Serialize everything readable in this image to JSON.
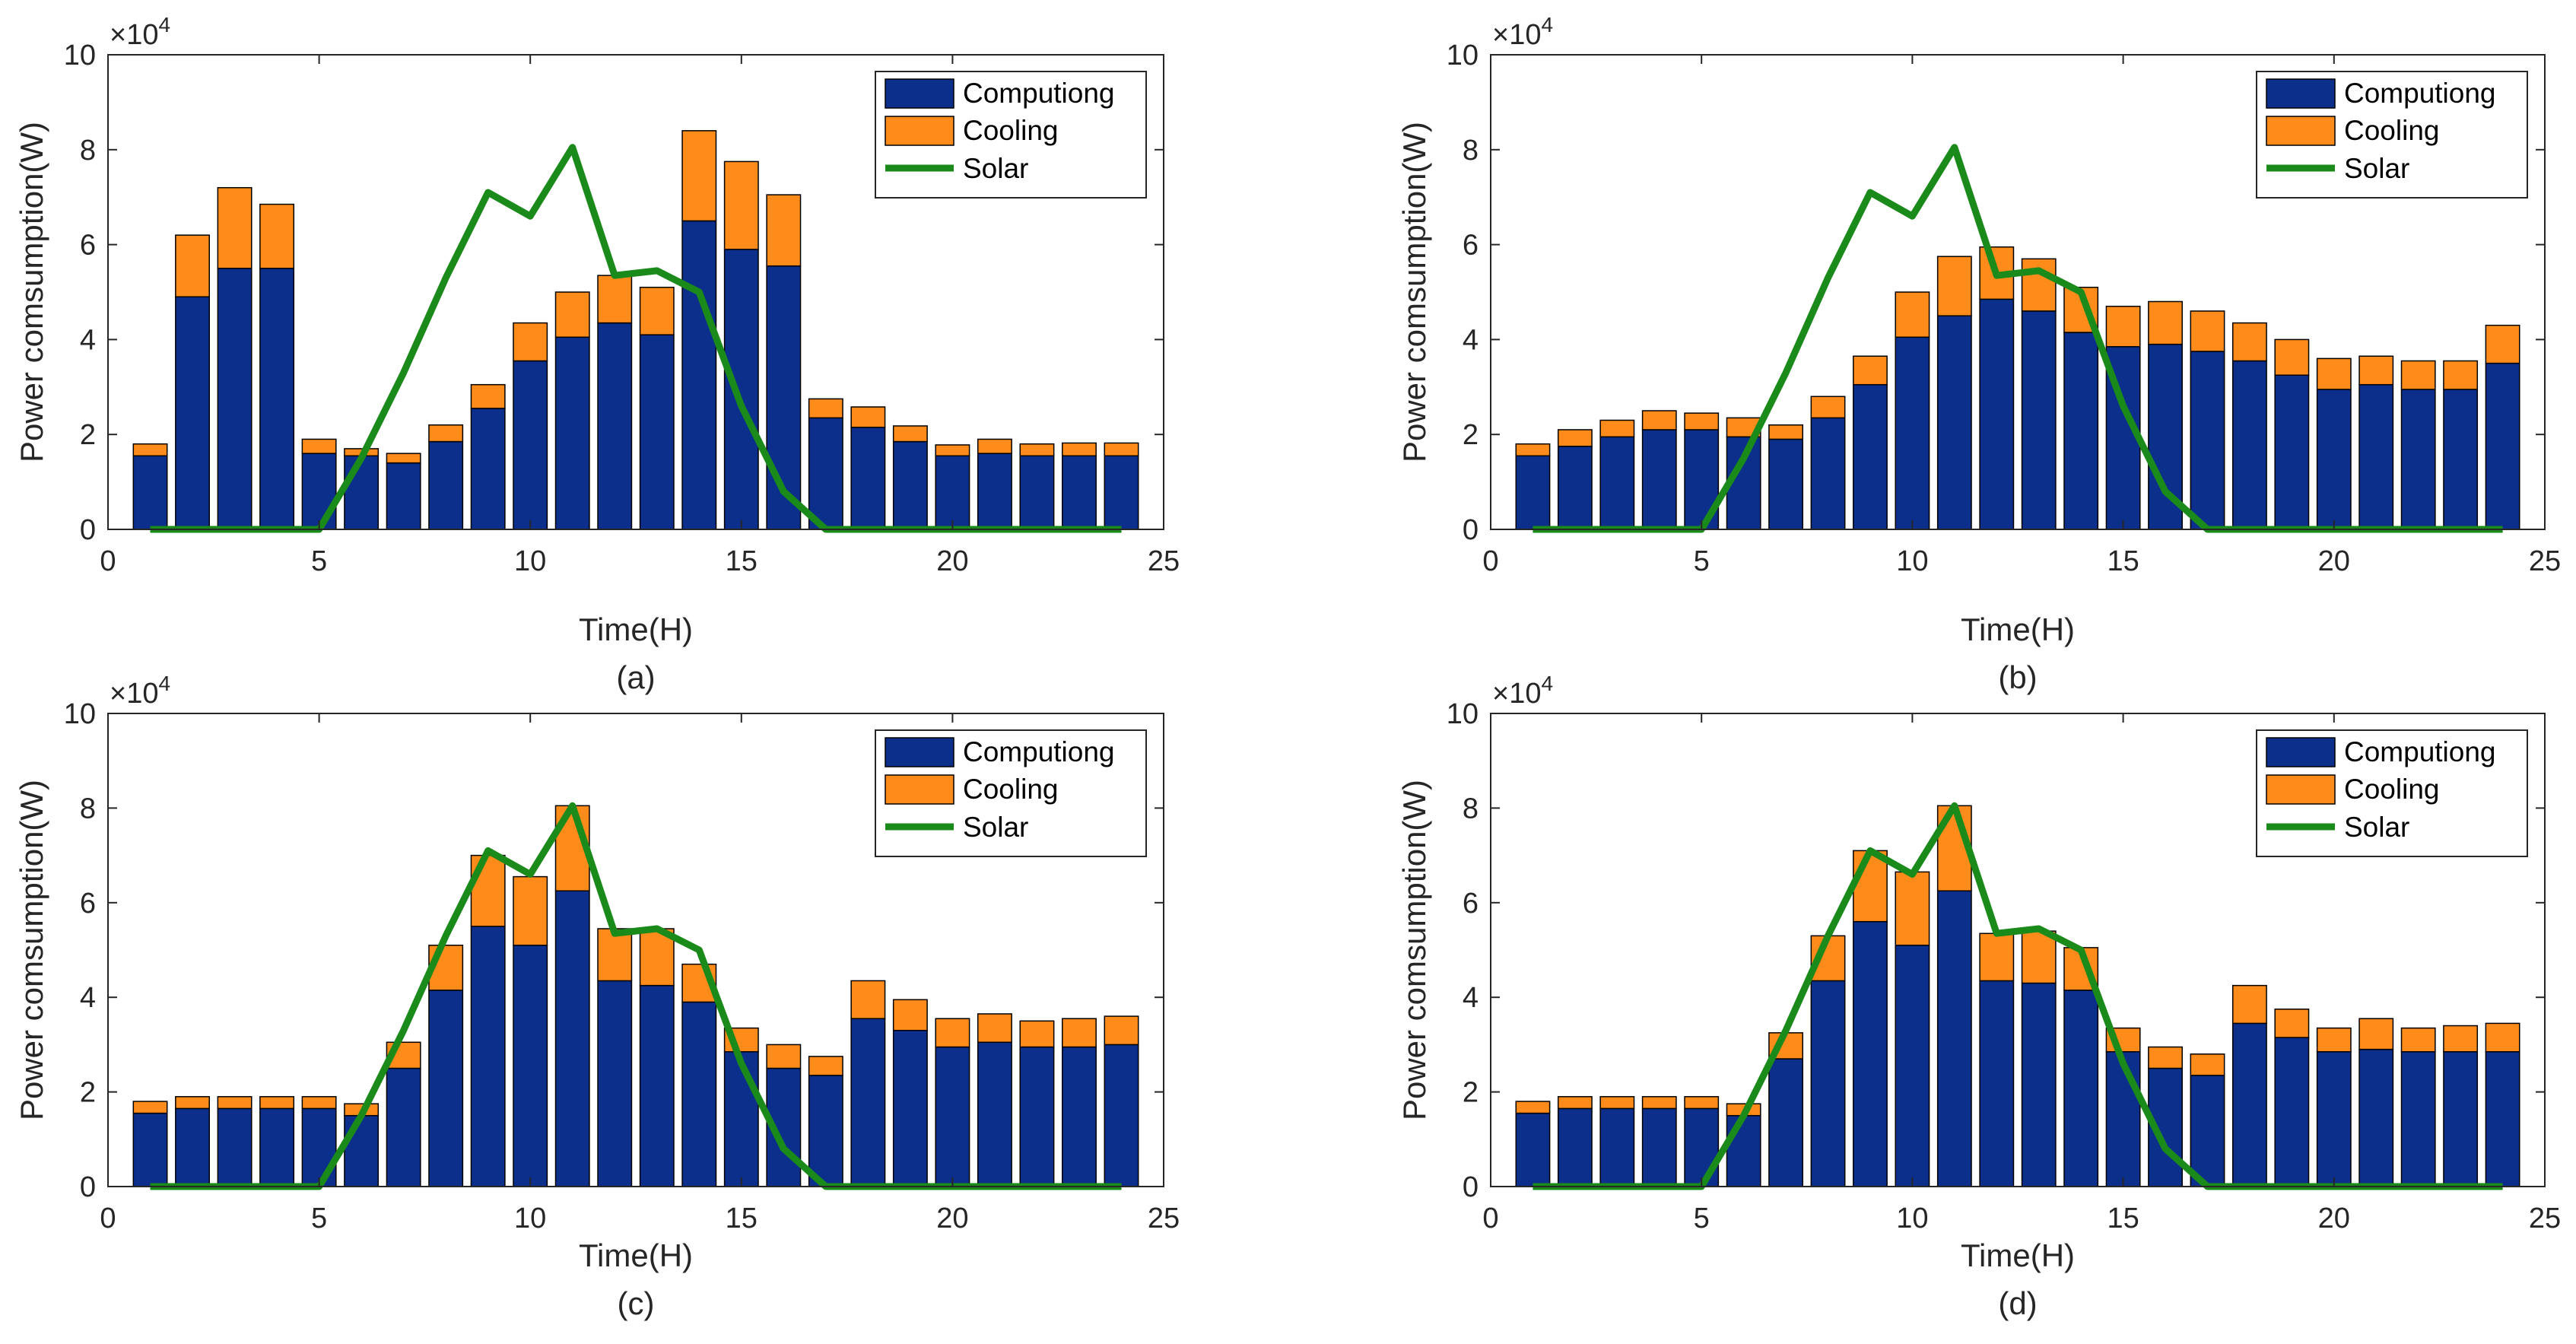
{
  "colors": {
    "computing": "#0b2f8a",
    "cooling": "#ff8c1a",
    "solar": "#1a8a1a",
    "axis": "#262626"
  },
  "legend_labels": [
    "Computiong",
    "Cooling",
    "Solar"
  ],
  "chart_data": [
    {
      "type": "bar",
      "caption": "(a)",
      "xlabel": "Time(H)",
      "ylabel": "Power comsumption(W)",
      "y_exponent_base": "×10",
      "y_exponent_power": "4",
      "xlim": [
        0,
        25
      ],
      "ylim": [
        0,
        100000
      ],
      "x_ticks": [
        "0",
        "5",
        "10",
        "15",
        "20",
        "25"
      ],
      "y_ticks": [
        "0",
        "2",
        "4",
        "6",
        "8",
        "10"
      ],
      "legend_position": "top-right",
      "x": [
        1,
        2,
        3,
        4,
        5,
        6,
        7,
        8,
        9,
        10,
        11,
        12,
        13,
        14,
        15,
        16,
        17,
        18,
        19,
        20,
        21,
        22,
        23,
        24
      ],
      "series": [
        {
          "name": "Computiong",
          "type": "stacked-bar",
          "values": [
            15500,
            49000,
            55000,
            55000,
            16000,
            15500,
            14000,
            18500,
            25500,
            35500,
            40500,
            43500,
            41000,
            65000,
            59000,
            55500,
            23500,
            21500,
            18500,
            15500,
            16000,
            15500,
            15500,
            15500
          ]
        },
        {
          "name": "Cooling",
          "type": "stacked-bar",
          "values": [
            2500,
            13000,
            17000,
            13500,
            3000,
            1500,
            2000,
            3500,
            5000,
            8000,
            9500,
            10000,
            10000,
            19000,
            18500,
            15000,
            4000,
            4300,
            3300,
            2300,
            3000,
            2500,
            2700,
            2700
          ]
        },
        {
          "name": "Solar",
          "type": "line",
          "values": [
            0,
            0,
            0,
            0,
            0,
            15000,
            33000,
            53000,
            71000,
            66000,
            80500,
            53500,
            54500,
            50000,
            26000,
            8000,
            0,
            0,
            0,
            0,
            0,
            0,
            0,
            0
          ]
        }
      ]
    },
    {
      "type": "bar",
      "caption": "(b)",
      "xlabel": "Time(H)",
      "ylabel": "Power comsumption(W)",
      "y_exponent_base": "×10",
      "y_exponent_power": "4",
      "xlim": [
        0,
        25
      ],
      "ylim": [
        0,
        100000
      ],
      "x_ticks": [
        "0",
        "5",
        "10",
        "15",
        "20",
        "25"
      ],
      "y_ticks": [
        "0",
        "2",
        "4",
        "6",
        "8",
        "10"
      ],
      "legend_position": "top-right",
      "x": [
        1,
        2,
        3,
        4,
        5,
        6,
        7,
        8,
        9,
        10,
        11,
        12,
        13,
        14,
        15,
        16,
        17,
        18,
        19,
        20,
        21,
        22,
        23,
        24
      ],
      "series": [
        {
          "name": "Computiong",
          "type": "stacked-bar",
          "values": [
            15500,
            17500,
            19500,
            21000,
            21000,
            19500,
            19000,
            23500,
            30500,
            40500,
            45000,
            48500,
            46000,
            41500,
            38500,
            39000,
            37500,
            35500,
            32500,
            29500,
            30500,
            29500,
            29500,
            35000
          ]
        },
        {
          "name": "Cooling",
          "type": "stacked-bar",
          "values": [
            2500,
            3500,
            3500,
            4000,
            3500,
            4000,
            3000,
            4500,
            6000,
            9500,
            12500,
            11000,
            11000,
            9500,
            8500,
            9000,
            8500,
            8000,
            7500,
            6500,
            6000,
            6000,
            6000,
            8000
          ]
        },
        {
          "name": "Solar",
          "type": "line",
          "values": [
            0,
            0,
            0,
            0,
            0,
            15000,
            33000,
            53000,
            71000,
            66000,
            80500,
            53500,
            54500,
            50000,
            26000,
            8000,
            0,
            0,
            0,
            0,
            0,
            0,
            0,
            0
          ]
        }
      ]
    },
    {
      "type": "bar",
      "caption": "(c)",
      "xlabel": "Time(H)",
      "ylabel": "Power comsumption(W)",
      "y_exponent_base": "×10",
      "y_exponent_power": "4",
      "xlim": [
        0,
        25
      ],
      "ylim": [
        0,
        100000
      ],
      "x_ticks": [
        "0",
        "5",
        "10",
        "15",
        "20",
        "25"
      ],
      "y_ticks": [
        "0",
        "2",
        "4",
        "6",
        "8",
        "10"
      ],
      "legend_position": "top-right",
      "x": [
        1,
        2,
        3,
        4,
        5,
        6,
        7,
        8,
        9,
        10,
        11,
        12,
        13,
        14,
        15,
        16,
        17,
        18,
        19,
        20,
        21,
        22,
        23,
        24
      ],
      "series": [
        {
          "name": "Computiong",
          "type": "stacked-bar",
          "values": [
            15500,
            16500,
            16500,
            16500,
            16500,
            15000,
            25000,
            41500,
            55000,
            51000,
            62500,
            43500,
            42500,
            39000,
            28500,
            25000,
            23500,
            35500,
            33000,
            29500,
            30500,
            29500,
            29500,
            30000
          ]
        },
        {
          "name": "Cooling",
          "type": "stacked-bar",
          "values": [
            2500,
            2500,
            2500,
            2500,
            2500,
            2500,
            5500,
            9500,
            15000,
            14500,
            18000,
            11000,
            12000,
            8000,
            5000,
            5000,
            4000,
            8000,
            6500,
            6000,
            6000,
            5500,
            6000,
            6000
          ]
        },
        {
          "name": "Solar",
          "type": "line",
          "values": [
            0,
            0,
            0,
            0,
            0,
            15000,
            33000,
            53000,
            71000,
            66000,
            80500,
            53500,
            54500,
            50000,
            26000,
            8000,
            0,
            0,
            0,
            0,
            0,
            0,
            0,
            0
          ]
        }
      ]
    },
    {
      "type": "bar",
      "caption": "(d)",
      "xlabel": "Time(H)",
      "ylabel": "Power comsumption(W)",
      "y_exponent_base": "×10",
      "y_exponent_power": "4",
      "xlim": [
        0,
        25
      ],
      "ylim": [
        0,
        100000
      ],
      "x_ticks": [
        "0",
        "5",
        "10",
        "15",
        "20",
        "25"
      ],
      "y_ticks": [
        "0",
        "2",
        "4",
        "6",
        "8",
        "10"
      ],
      "legend_position": "top-right",
      "x": [
        1,
        2,
        3,
        4,
        5,
        6,
        7,
        8,
        9,
        10,
        11,
        12,
        13,
        14,
        15,
        16,
        17,
        18,
        19,
        20,
        21,
        22,
        23,
        24
      ],
      "series": [
        {
          "name": "Computiong",
          "type": "stacked-bar",
          "values": [
            15500,
            16500,
            16500,
            16500,
            16500,
            15000,
            27000,
            43500,
            56000,
            51000,
            62500,
            43500,
            43000,
            41500,
            28500,
            25000,
            23500,
            34500,
            31500,
            28500,
            29000,
            28500,
            28500,
            28500
          ]
        },
        {
          "name": "Cooling",
          "type": "stacked-bar",
          "values": [
            2500,
            2500,
            2500,
            2500,
            2500,
            2500,
            5500,
            9500,
            15000,
            15500,
            18000,
            10000,
            11000,
            9000,
            5000,
            4500,
            4500,
            8000,
            6000,
            5000,
            6500,
            5000,
            5500,
            6000
          ]
        },
        {
          "name": "Solar",
          "type": "line",
          "values": [
            0,
            0,
            0,
            0,
            0,
            15000,
            33000,
            53000,
            71000,
            66000,
            80500,
            53500,
            54500,
            50000,
            26000,
            8000,
            0,
            0,
            0,
            0,
            0,
            0,
            0,
            0
          ]
        }
      ]
    }
  ]
}
